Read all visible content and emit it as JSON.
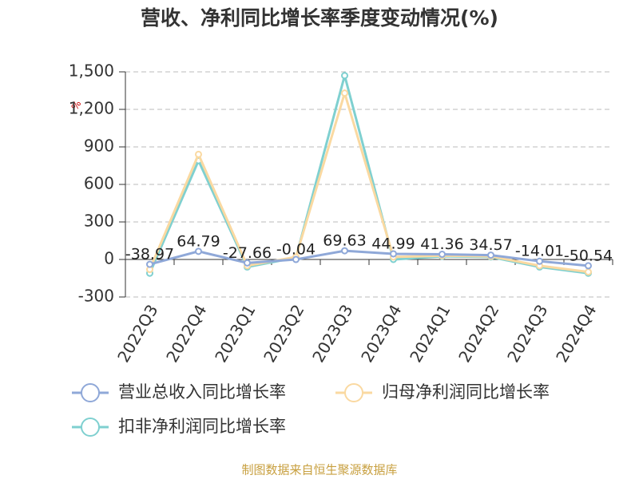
{
  "chart_data": {
    "type": "line",
    "title": "营收、净利同比增长率季度变动情况(%)",
    "y_label": "%",
    "categories": [
      "2022Q3",
      "2022Q4",
      "2023Q1",
      "2023Q2",
      "2023Q3",
      "2023Q4",
      "2024Q1",
      "2024Q2",
      "2024Q3",
      "2024Q4"
    ],
    "series": [
      {
        "name": "营业总收入同比增长率",
        "color": "#8fa8d8",
        "values": [
          -38.97,
          64.79,
          -27.66,
          -0.04,
          69.63,
          44.99,
          41.36,
          34.57,
          -14.01,
          -50.54
        ],
        "show_labels": true
      },
      {
        "name": "归母净利润同比增长率",
        "color": "#fad9a1",
        "values": [
          -80,
          840,
          -50,
          20,
          1330,
          20,
          30,
          25,
          -50,
          -100
        ]
      },
      {
        "name": "扣非净利润同比增长率",
        "color": "#7fd0d0",
        "values": [
          -110,
          790,
          -60,
          15,
          1470,
          0,
          25,
          20,
          -60,
          -110
        ]
      }
    ],
    "ylim": [
      -300,
      1500
    ],
    "yticks": [
      -300,
      0,
      300,
      600,
      900,
      {
        "value": 1200,
        "label": "1,200"
      },
      {
        "value": 1500,
        "label": "1,500"
      }
    ],
    "grid": true,
    "footer": "制图数据来自恒生聚源数据库"
  }
}
